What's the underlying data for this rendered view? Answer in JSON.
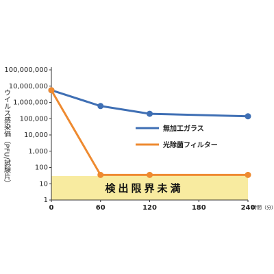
{
  "chart_data": {
    "type": "line",
    "ylabel": "ウイルス感染価（PFU/試験片）",
    "xunit": "時間（分）",
    "yscale": "log",
    "ylim": [
      1,
      100000000
    ],
    "xlim": [
      0,
      240
    ],
    "y_ticks": [
      {
        "value": 1,
        "label": "1"
      },
      {
        "value": 10,
        "label": "10"
      },
      {
        "value": 100,
        "label": "100"
      },
      {
        "value": 1000,
        "label": "1,000"
      },
      {
        "value": 10000,
        "label": "10,000"
      },
      {
        "value": 100000,
        "label": "100,000"
      },
      {
        "value": 1000000,
        "label": "1,000,000"
      },
      {
        "value": 10000000,
        "label": "10,000,000"
      },
      {
        "value": 100000000,
        "label": "100,000,000"
      }
    ],
    "x_ticks": [
      {
        "value": 0,
        "label": "0"
      },
      {
        "value": 60,
        "label": "60"
      },
      {
        "value": 120,
        "label": "120"
      },
      {
        "value": 180,
        "label": "180"
      },
      {
        "value": 240,
        "label": "240"
      }
    ],
    "detection_limit": {
      "label": "検出限界未満",
      "upper": 30,
      "color": "#f8eba0"
    },
    "legend_position": "right-middle",
    "series": [
      {
        "name": "無加工ガラス",
        "color": "#3f6fb4",
        "x": [
          0,
          60,
          120,
          240
        ],
        "y": [
          5600000,
          600000,
          200000,
          140000
        ]
      },
      {
        "name": "光除菌フィルター",
        "color": "#ee8a30",
        "x": [
          0,
          60,
          120,
          240
        ],
        "y": [
          5600000,
          35,
          35,
          35
        ]
      }
    ]
  }
}
